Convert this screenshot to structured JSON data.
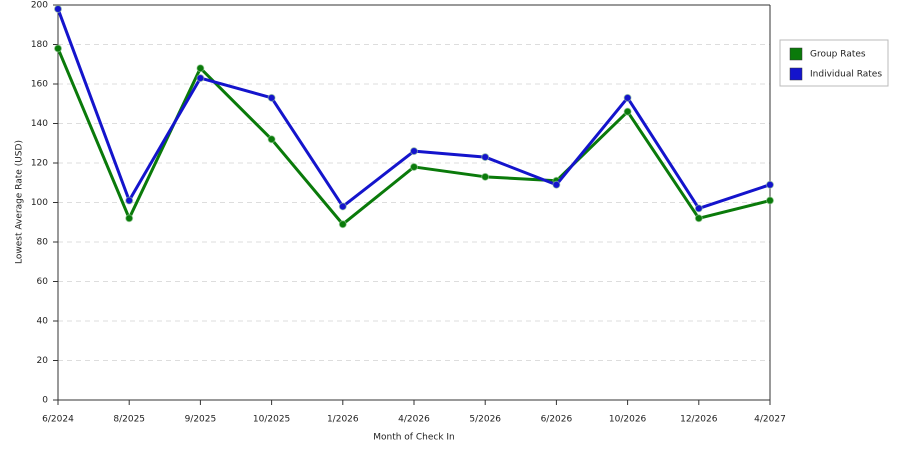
{
  "chart_data": {
    "type": "line",
    "x_label": "Month of Check In",
    "y_label": "Lowest Average Rate (USD)",
    "categories": [
      "6/2024",
      "8/2025",
      "9/2025",
      "10/2025",
      "1/2026",
      "4/2026",
      "5/2026",
      "6/2026",
      "10/2026",
      "12/2026",
      "4/2027"
    ],
    "series": [
      {
        "name": "Group Rates",
        "color": "#0a7a0a",
        "values": [
          178,
          92,
          168,
          132,
          89,
          118,
          113,
          111,
          146,
          92,
          101
        ]
      },
      {
        "name": "Individual Rates",
        "color": "#1414cc",
        "values": [
          198,
          101,
          163,
          153,
          98,
          126,
          123,
          109,
          153,
          97,
          109
        ]
      }
    ],
    "ylim": [
      0,
      200
    ],
    "yticks": [
      0,
      20,
      40,
      60,
      80,
      100,
      120,
      140,
      160,
      180,
      200
    ],
    "grid": true,
    "legend": "right"
  }
}
